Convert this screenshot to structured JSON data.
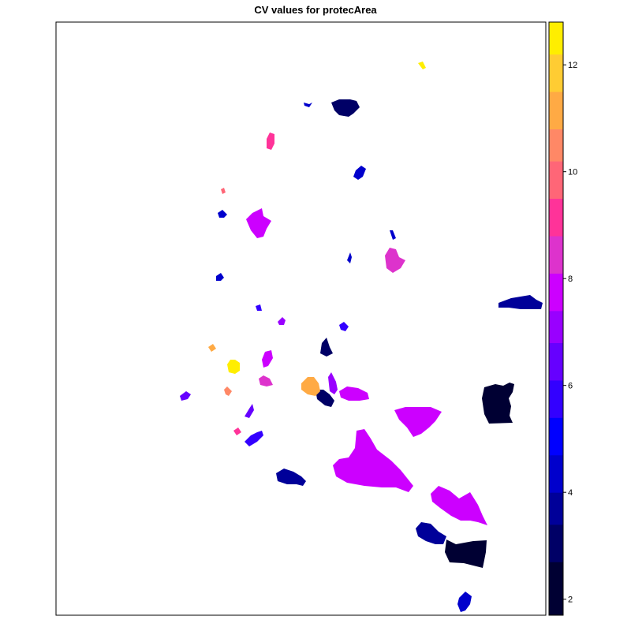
{
  "chart_data": {
    "type": "heatmap",
    "title": "CV values for protecArea",
    "xlabel": "",
    "ylabel": "",
    "colorbar": {
      "range": [
        1.7,
        12.8
      ],
      "ticks": [
        2,
        4,
        6,
        8,
        10,
        12
      ],
      "tick_labels": [
        "2",
        "4",
        "6",
        "8",
        "10",
        "12"
      ],
      "breaks": [
        1.7,
        2.7,
        3.4,
        4.0,
        4.7,
        5.4,
        6.1,
        6.8,
        7.4,
        8.1,
        8.8,
        9.5,
        10.2,
        10.8,
        11.5,
        12.2,
        12.8
      ],
      "colors": [
        "#000033",
        "#000066",
        "#000099",
        "#0000CC",
        "#0000FF",
        "#3300FF",
        "#6600FF",
        "#9900FF",
        "#CC00FF",
        "#DD33CC",
        "#FF3399",
        "#FF6677",
        "#FF8866",
        "#FFAA44",
        "#FFCC33",
        "#FFEE00",
        "#FFFF66"
      ]
    },
    "regions_cv": [
      1.9,
      2.5,
      3.0,
      3.1,
      3.6,
      3.8,
      3.9,
      4.0,
      4.1,
      4.2,
      4.3,
      4.4,
      4.5,
      5.5,
      5.6,
      5.8,
      6.3,
      6.6,
      6.9,
      7.3,
      7.4,
      7.5,
      7.6,
      7.7,
      7.8,
      7.8,
      8.3,
      8.6,
      8.9,
      9.1,
      9.9,
      10.2,
      10.9,
      11.2,
      12.4,
      12.6
    ]
  }
}
